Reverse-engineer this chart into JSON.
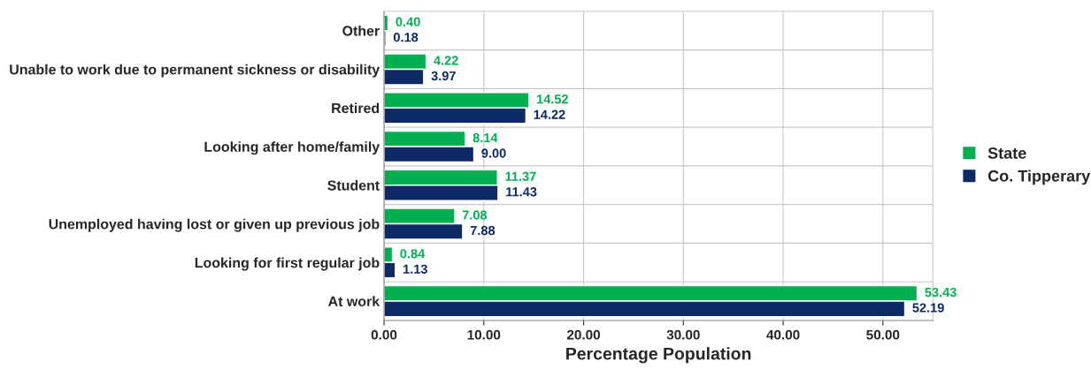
{
  "chart_data": {
    "type": "bar",
    "orientation": "horizontal",
    "xlabel": "Percentage Population",
    "categories": [
      "Other",
      "Unable to work due to permanent sickness or disability",
      "Retired",
      "Looking after home/family",
      "Student",
      "Unemployed having lost or given up previous job",
      "Looking for first regular job",
      "At work"
    ],
    "series": [
      {
        "name": "State",
        "color": "#00b050",
        "values": [
          0.4,
          4.22,
          14.52,
          8.14,
          11.37,
          7.08,
          0.84,
          53.43
        ],
        "value_labels": [
          "0.40",
          "4.22",
          "14.52",
          "8.14",
          "11.37",
          "7.08",
          "0.84",
          "53.43"
        ]
      },
      {
        "name": "Co. Tipperary",
        "color": "#0d2a66",
        "values": [
          0.18,
          3.97,
          14.22,
          9.0,
          11.43,
          7.88,
          1.13,
          52.19
        ],
        "value_labels": [
          "0.18",
          "3.97",
          "14.22",
          "9.00",
          "11.43",
          "7.88",
          "1.13",
          "52.19"
        ]
      }
    ],
    "xlim": [
      0,
      55
    ],
    "xticks": [
      {
        "value": 0,
        "label": "0.00"
      },
      {
        "value": 10,
        "label": "10.00"
      },
      {
        "value": 20,
        "label": "20.00"
      },
      {
        "value": 30,
        "label": "30.00"
      },
      {
        "value": 40,
        "label": "40.00"
      },
      {
        "value": 50,
        "label": "50.00"
      }
    ],
    "grid": true,
    "legend": "right"
  }
}
